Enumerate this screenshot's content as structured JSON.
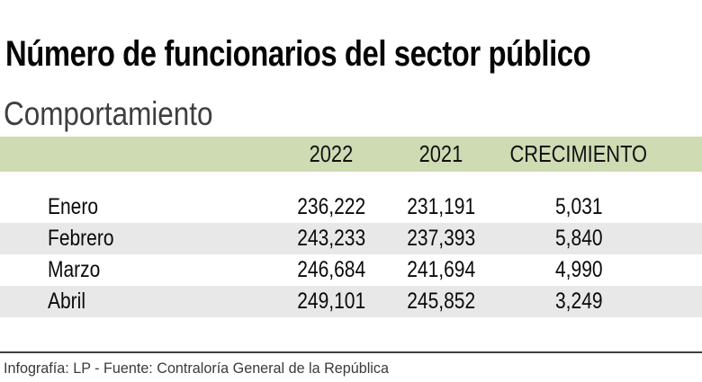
{
  "title": "Número de funcionarios del sector público",
  "subtitle": "Comportamiento",
  "colors": {
    "header_band_bg": "#cedbb3",
    "row_stripe_bg": "#e8e8e8",
    "footer_rule": "#3f3f3f",
    "title_text": "#050505",
    "subtitle_text": "#3e3e3e",
    "footer_text": "#3a3a3a"
  },
  "table": {
    "columns": {
      "month": "",
      "y2022": "2022",
      "y2021": "2021",
      "growth": "CRECIMIENTO"
    },
    "rows": [
      {
        "month": "Enero",
        "y2022": "236,222",
        "y2021": "231,191",
        "growth": "5,031"
      },
      {
        "month": "Febrero",
        "y2022": "243,233",
        "y2021": "237,393",
        "growth": "5,840"
      },
      {
        "month": "Marzo",
        "y2022": "246,684",
        "y2021": "241,694",
        "growth": "4,990"
      },
      {
        "month": "Abril",
        "y2022": "249,101",
        "y2021": "245,852",
        "growth": "3,249"
      }
    ]
  },
  "footer": {
    "credit": "Infografía: LP - Fuente: Contraloría General de la República"
  },
  "chart_data": {
    "type": "table",
    "title": "Número de funcionarios del sector público",
    "subtitle": "Comportamiento",
    "categories": [
      "Enero",
      "Febrero",
      "Marzo",
      "Abril"
    ],
    "series": [
      {
        "name": "2022",
        "values": [
          236222,
          243233,
          246684,
          249101
        ]
      },
      {
        "name": "2021",
        "values": [
          231191,
          237393,
          241694,
          245852
        ]
      },
      {
        "name": "CRECIMIENTO",
        "values": [
          5031,
          5840,
          4990,
          3249
        ]
      }
    ],
    "source": "Infografía: LP - Fuente: Contraloría General de la República",
    "layout": {
      "header_bg": "#cedbb3",
      "zebra_stripes": true,
      "value_alignment": "center",
      "grid": false
    }
  }
}
